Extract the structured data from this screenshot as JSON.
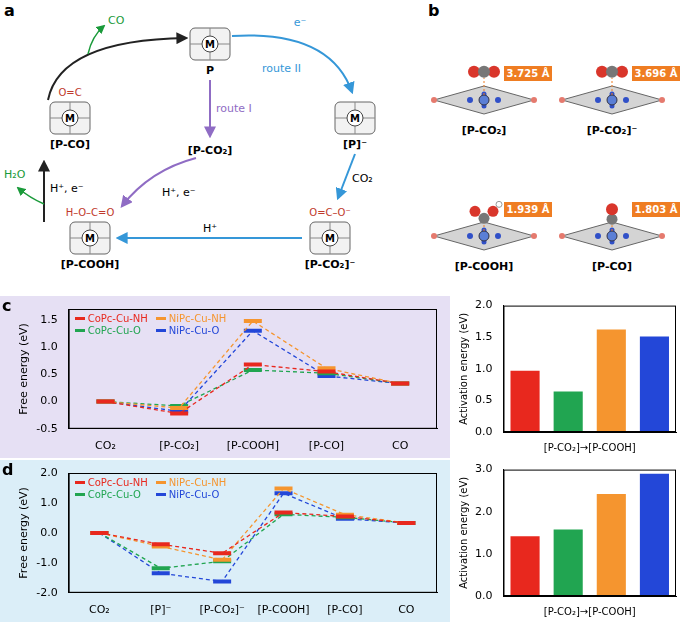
{
  "scheme": {
    "panel_label": "a",
    "metal": "M",
    "nodes": [
      {
        "label": "P"
      },
      {
        "label": "[P-CO₂]"
      },
      {
        "label": "[P]⁻"
      },
      {
        "label": "[P-CO₂]⁻",
        "adsorbate": "O=C–O⁻"
      },
      {
        "label": "[P-COOH]",
        "adsorbate": "H–O–C=O"
      },
      {
        "label": "[P-CO]",
        "adsorbate": "O=C"
      }
    ],
    "arrows": [
      {
        "labels": [
          "route I"
        ]
      },
      {
        "labels": [
          "e⁻",
          "route II"
        ]
      },
      {
        "labels": [
          "CO₂"
        ]
      },
      {
        "labels": [
          "H⁺"
        ]
      },
      {
        "labels": [
          "H⁺, e⁻"
        ]
      },
      {
        "labels": [
          "H⁺, e⁻",
          "H₂O"
        ]
      },
      {
        "labels": [
          "CO"
        ]
      }
    ]
  },
  "structures": {
    "panel_label": "b",
    "items": [
      {
        "label": "[P-CO₂]",
        "distance": "3.725 Å"
      },
      {
        "label": "[P-CO₂]⁻",
        "distance": "3.696 Å"
      },
      {
        "label": "[P-COOH]",
        "distance": "1.939 Å"
      },
      {
        "label": "[P-CO]",
        "distance": "1.803 Å"
      }
    ]
  },
  "chart_data": [
    {
      "panel_label": "c",
      "type": "line",
      "y_label": "Free energy (eV)",
      "categories": [
        "CO₂",
        "[P-CO₂]",
        "[P-COOH]",
        "[P-CO]",
        "CO"
      ],
      "series": [
        {
          "name": "CoPc-Cu-NH",
          "color": "#e8281e",
          "values": [
            0,
            -0.22,
            0.68,
            0.55,
            0.33
          ]
        },
        {
          "name": "NiPc-Cu-NH",
          "color": "#f5952f",
          "values": [
            0,
            -0.12,
            1.48,
            0.61,
            0.33
          ]
        },
        {
          "name": "CoPc-Cu-O",
          "color": "#21a551",
          "values": [
            0,
            -0.08,
            0.58,
            0.52,
            0.33
          ]
        },
        {
          "name": "NiPc-Cu-O",
          "color": "#2347d8",
          "values": [
            0,
            -0.18,
            1.3,
            0.47,
            0.33
          ]
        }
      ],
      "marker": "line",
      "line_style": "dashed",
      "ylim": [
        -0.5,
        1.7
      ],
      "yticks": [
        -0.5,
        {
          "value": 0,
          "label": "0.0"
        },
        0.5,
        {
          "value": 1,
          "label": "1.0"
        },
        1.5
      ],
      "grid": false,
      "legend": "upper left"
    },
    {
      "type": "bar",
      "y_label": "Activation energy (eV)",
      "x_label": "[P-CO₂]→[P-COOH]",
      "categories": [
        null,
        null,
        null,
        null
      ],
      "values": [
        0.97,
        0.64,
        1.62,
        1.51
      ],
      "colors": [
        "#e8281e",
        "#21a551",
        "#f5952f",
        "#2347d8"
      ],
      "ylim": [
        0,
        2
      ],
      "yticks": [
        {
          "value": 0,
          "label": "0.0"
        },
        0.5,
        {
          "value": 1,
          "label": "1.0"
        },
        1.5,
        {
          "value": 2,
          "label": "2.0"
        }
      ],
      "grid": false,
      "tick_labels": "y"
    },
    {
      "panel_label": "d",
      "type": "line",
      "y_label": "Free energy (eV)",
      "categories": [
        "CO₂",
        "[P]⁻",
        "[P-CO₂]⁻",
        "[P-COOH]",
        "[P-CO]",
        "CO"
      ],
      "series": [
        {
          "name": "CoPc-Cu-NH",
          "color": "#e8281e",
          "values": [
            0,
            -0.38,
            -0.68,
            0.68,
            0.55,
            0.33
          ]
        },
        {
          "name": "NiPc-Cu-NH",
          "color": "#f5952f",
          "values": [
            0,
            -0.45,
            -0.9,
            1.48,
            0.61,
            0.33
          ]
        },
        {
          "name": "CoPc-Cu-O",
          "color": "#21a551",
          "values": [
            0,
            -1.18,
            -0.95,
            0.62,
            0.52,
            0.33
          ]
        },
        {
          "name": "NiPc-Cu-O",
          "color": "#2347d8",
          "values": [
            0,
            -1.35,
            -1.62,
            1.32,
            0.47,
            0.33
          ]
        }
      ],
      "marker": "line",
      "line_style": "dashed",
      "ylim": [
        -2,
        2
      ],
      "yticks": [
        {
          "value": -2,
          "label": "-2.0"
        },
        {
          "value": -1,
          "label": "-1.0"
        },
        {
          "value": 0,
          "label": "0.0"
        },
        {
          "value": 1,
          "label": "1.0"
        },
        {
          "value": 2,
          "label": "2.0"
        }
      ],
      "grid": false,
      "legend": "upper left"
    },
    {
      "type": "bar",
      "y_label": "Activation energy (eV)",
      "x_label": "[P-CO₂]→[P-COOH]",
      "categories": [
        null,
        null,
        null,
        null
      ],
      "values": [
        1.42,
        1.58,
        2.42,
        2.9
      ],
      "colors": [
        "#e8281e",
        "#21a551",
        "#f5952f",
        "#2347d8"
      ],
      "ylim": [
        0,
        3
      ],
      "yticks": [
        {
          "value": 0,
          "label": "0.0"
        },
        {
          "value": 1,
          "label": "1.0"
        },
        {
          "value": 2,
          "label": "2.0"
        },
        {
          "value": 3,
          "label": "3.0"
        }
      ],
      "grid": false,
      "tick_labels": "y"
    }
  ]
}
